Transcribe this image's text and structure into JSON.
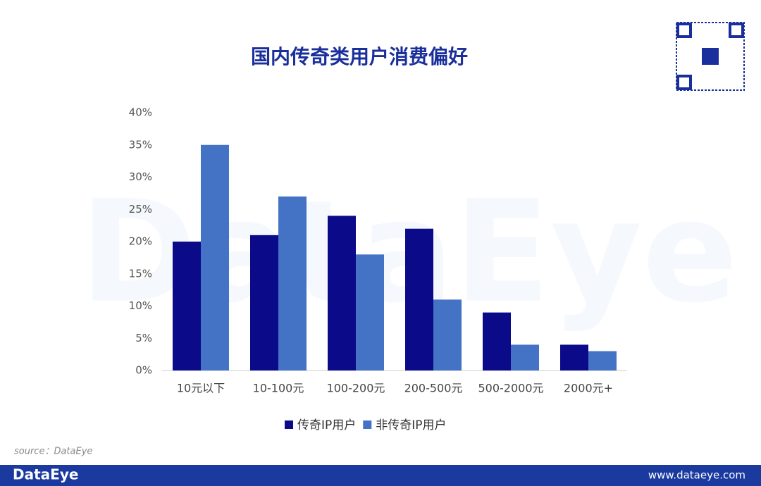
{
  "chart_data": {
    "type": "bar",
    "title": "国内传奇类用户消费偏好",
    "categories": [
      "10元以下",
      "10-100元",
      "100-200元",
      "200-500元",
      "500-2000元",
      "2000元+"
    ],
    "series": [
      {
        "name": "传奇IP用户",
        "color": "#0b0b8a",
        "values": [
          20,
          21,
          24,
          22,
          9,
          4
        ]
      },
      {
        "name": "非传奇IP用户",
        "color": "#4472c4",
        "values": [
          35,
          27,
          18,
          11,
          4,
          3
        ]
      }
    ],
    "ylim": [
      0,
      40
    ],
    "yticks": [
      {
        "value": 0,
        "label": "0%"
      },
      {
        "value": 5,
        "label": "5%"
      },
      {
        "value": 10,
        "label": "10%"
      },
      {
        "value": 15,
        "label": "15%"
      },
      {
        "value": 20,
        "label": "20%"
      },
      {
        "value": 25,
        "label": "25%"
      },
      {
        "value": 30,
        "label": "30%"
      },
      {
        "value": 35,
        "label": "35%"
      },
      {
        "value": 40,
        "label": "40%"
      }
    ],
    "grid": false,
    "legend": "bottom"
  },
  "watermark": "DataEye",
  "source": "source：DataEye",
  "footer": {
    "brand": "DataEye",
    "url": "www.dataeye.com"
  }
}
